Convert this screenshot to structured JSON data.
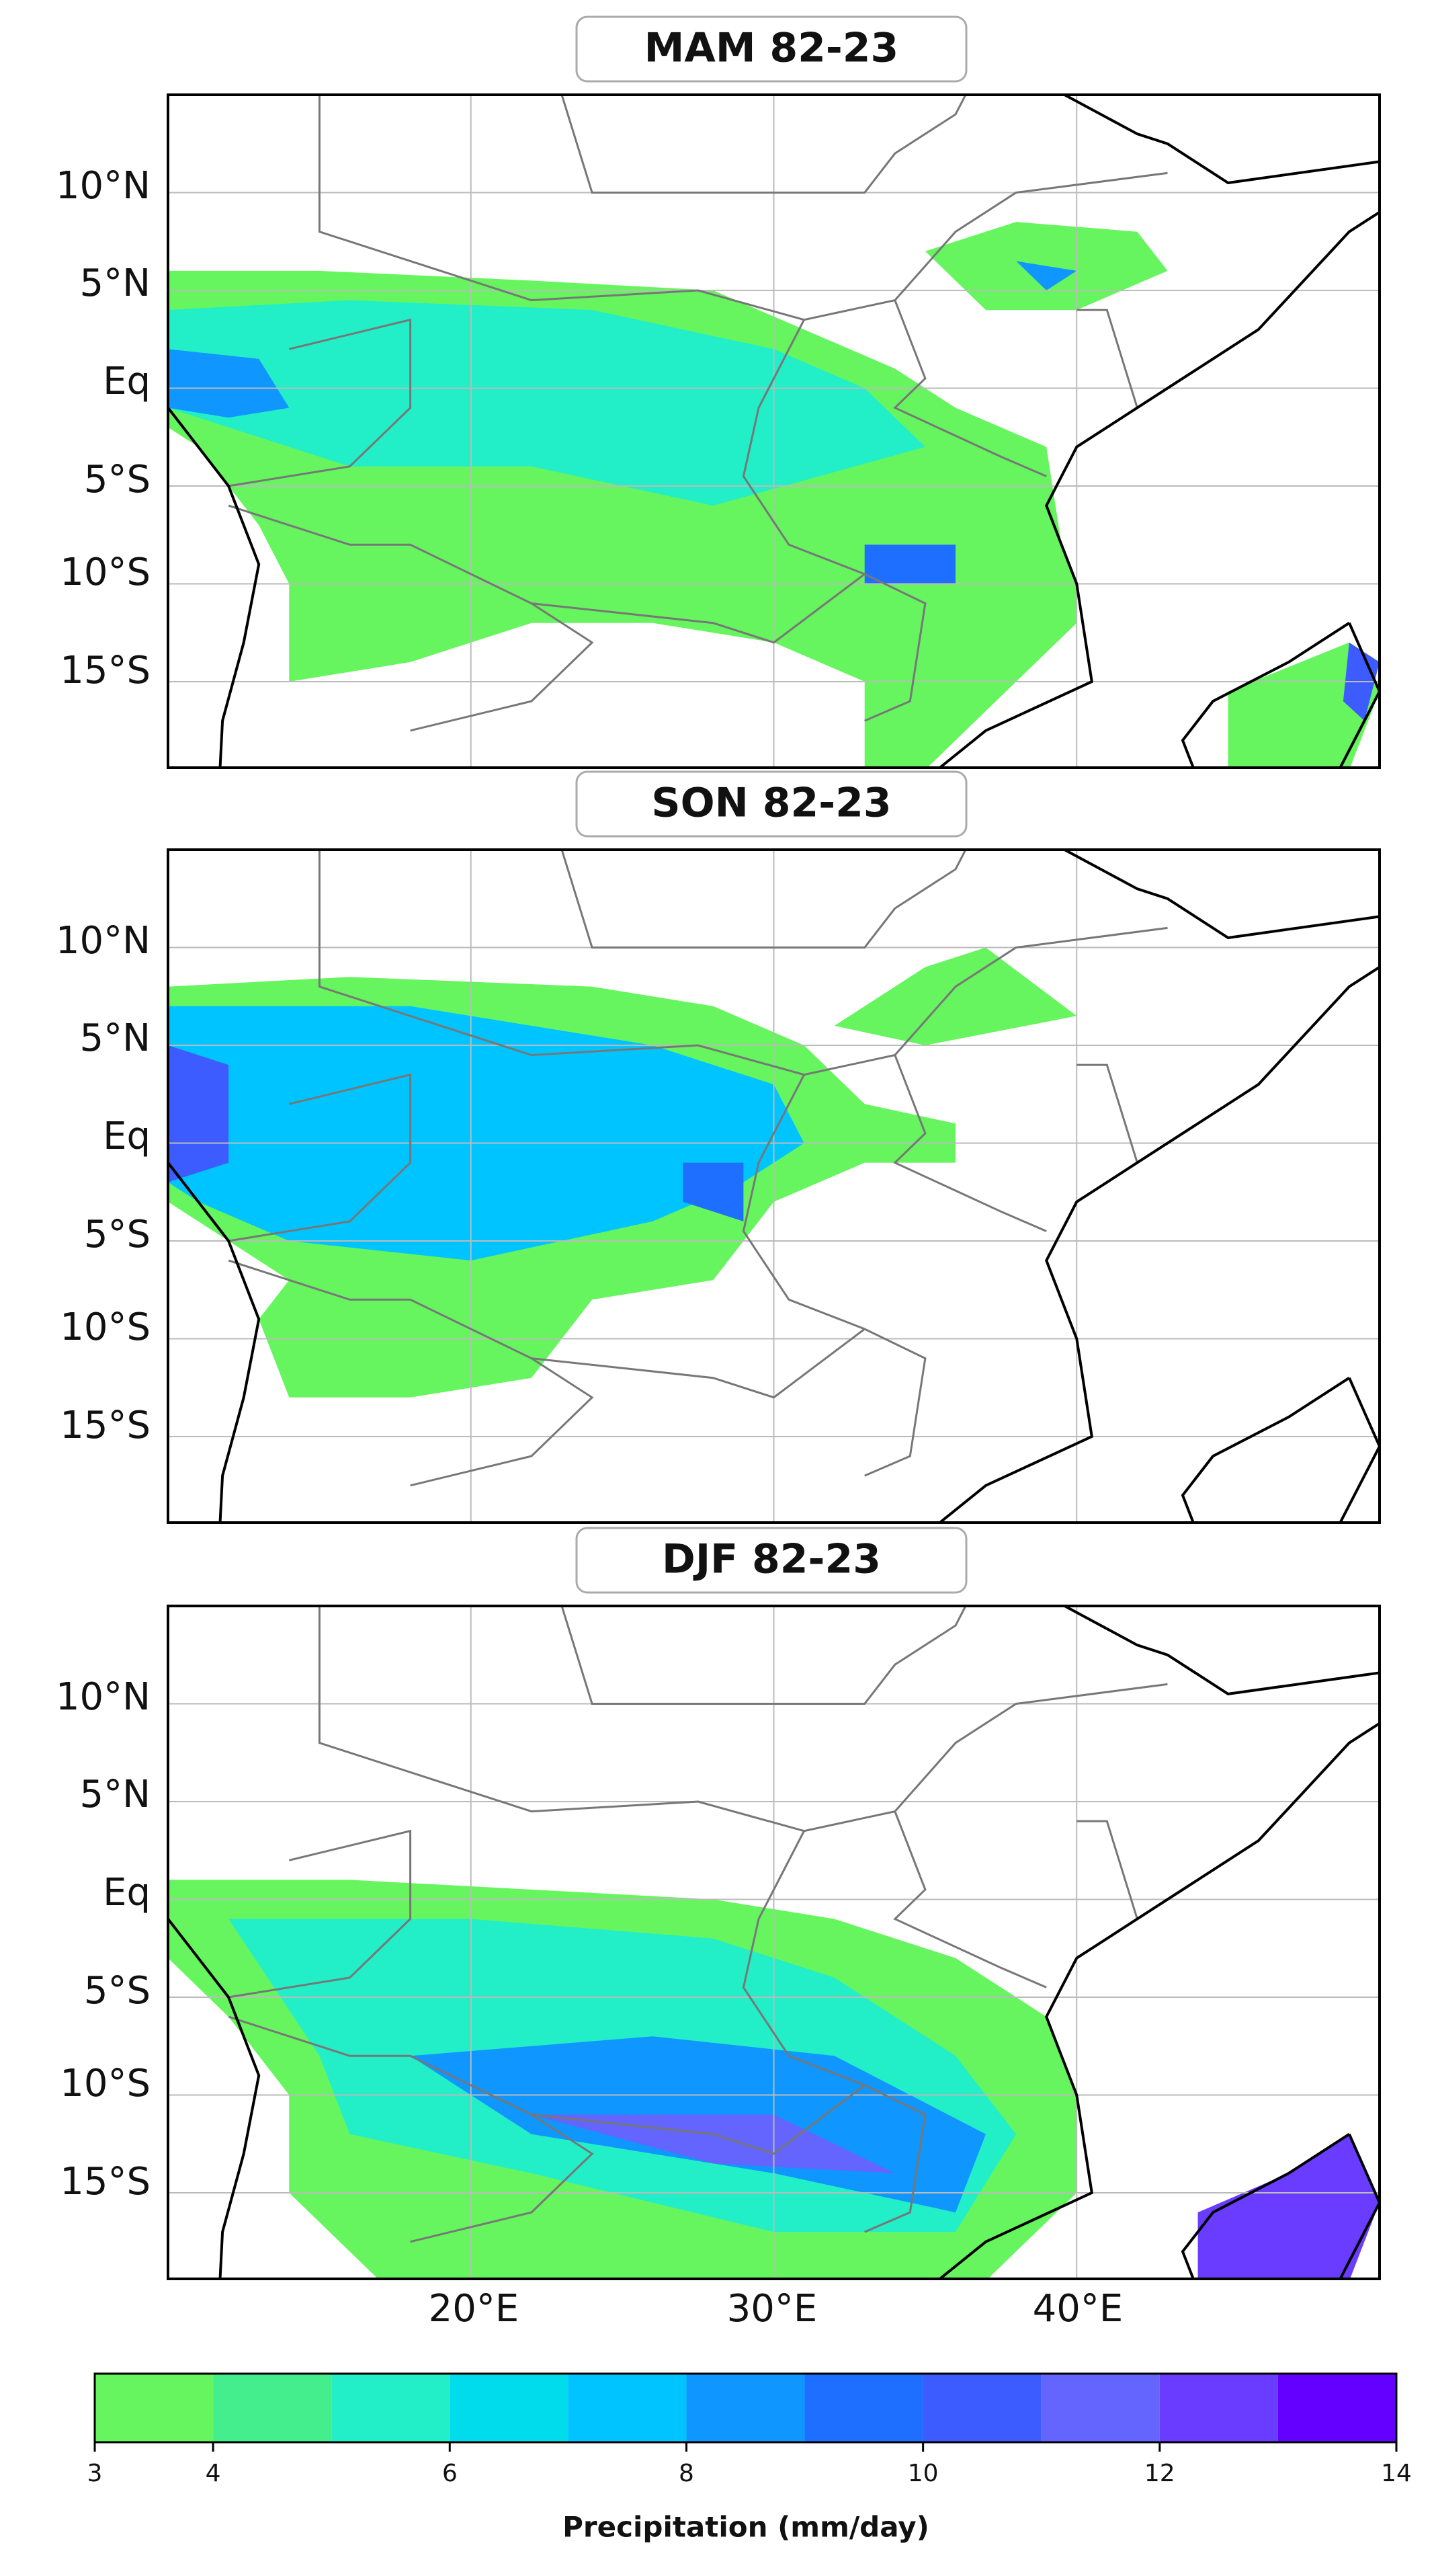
{
  "panels": [
    {
      "title": "MAM 82-23"
    },
    {
      "title": "SON 82-23"
    },
    {
      "title": "DJF 82-23"
    }
  ],
  "lat_labels": [
    "10°N",
    "5°N",
    "Eq",
    "5°S",
    "10°S",
    "15°S"
  ],
  "lon_labels": [
    "20°E",
    "30°E",
    "40°E"
  ],
  "colorbar": {
    "label": "Precipitation (mm/day)",
    "bounds": [
      3,
      4,
      5,
      6,
      7,
      8,
      9,
      10,
      11,
      12,
      13,
      14
    ],
    "colors": [
      "#66f55e",
      "#44ee8c",
      "#22eec8",
      "#00dcec",
      "#00c4ff",
      "#0f96ff",
      "#1e6eff",
      "#3c5cff",
      "#6464ff",
      "#6a3cff",
      "#6400ff",
      "#5a14c8"
    ],
    "ticks": [
      3,
      4,
      6,
      8,
      10,
      12,
      14
    ]
  }
}
